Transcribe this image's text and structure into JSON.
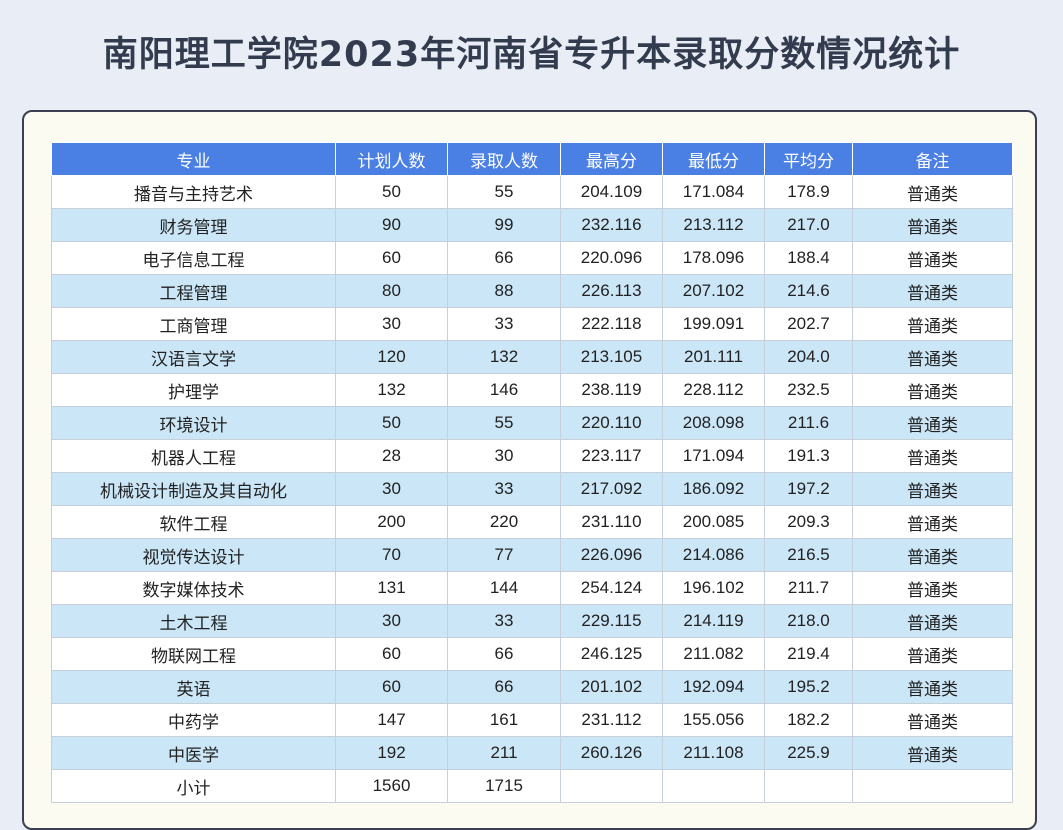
{
  "title": "南阳理工学院2023年河南省专升本录取分数情况统计",
  "table": {
    "headers": [
      "专业",
      "计划人数",
      "录取人数",
      "最高分",
      "最低分",
      "平均分",
      "备注"
    ],
    "rows": [
      [
        "播音与主持艺术",
        "50",
        "55",
        "204.109",
        "171.084",
        "178.9",
        "普通类"
      ],
      [
        "财务管理",
        "90",
        "99",
        "232.116",
        "213.112",
        "217.0",
        "普通类"
      ],
      [
        "电子信息工程",
        "60",
        "66",
        "220.096",
        "178.096",
        "188.4",
        "普通类"
      ],
      [
        "工程管理",
        "80",
        "88",
        "226.113",
        "207.102",
        "214.6",
        "普通类"
      ],
      [
        "工商管理",
        "30",
        "33",
        "222.118",
        "199.091",
        "202.7",
        "普通类"
      ],
      [
        "汉语言文学",
        "120",
        "132",
        "213.105",
        "201.111",
        "204.0",
        "普通类"
      ],
      [
        "护理学",
        "132",
        "146",
        "238.119",
        "228.112",
        "232.5",
        "普通类"
      ],
      [
        "环境设计",
        "50",
        "55",
        "220.110",
        "208.098",
        "211.6",
        "普通类"
      ],
      [
        "机器人工程",
        "28",
        "30",
        "223.117",
        "171.094",
        "191.3",
        "普通类"
      ],
      [
        "机械设计制造及其自动化",
        "30",
        "33",
        "217.092",
        "186.092",
        "197.2",
        "普通类"
      ],
      [
        "软件工程",
        "200",
        "220",
        "231.110",
        "200.085",
        "209.3",
        "普通类"
      ],
      [
        "视觉传达设计",
        "70",
        "77",
        "226.096",
        "214.086",
        "216.5",
        "普通类"
      ],
      [
        "数字媒体技术",
        "131",
        "144",
        "254.124",
        "196.102",
        "211.7",
        "普通类"
      ],
      [
        "土木工程",
        "30",
        "33",
        "229.115",
        "214.119",
        "218.0",
        "普通类"
      ],
      [
        "物联网工程",
        "60",
        "66",
        "246.125",
        "211.082",
        "219.4",
        "普通类"
      ],
      [
        "英语",
        "60",
        "66",
        "201.102",
        "192.094",
        "195.2",
        "普通类"
      ],
      [
        "中药学",
        "147",
        "161",
        "231.112",
        "155.056",
        "182.2",
        "普通类"
      ],
      [
        "中医学",
        "192",
        "211",
        "260.126",
        "211.108",
        "225.9",
        "普通类"
      ]
    ],
    "subtotal": [
      "小计",
      "1560",
      "1715",
      "",
      "",
      "",
      ""
    ]
  },
  "colors": {
    "header_bg": "#4a7fe4",
    "row_alt_bg": "#cbe6f7",
    "card_bg": "#fbfbf1",
    "page_bg": "#e9edf6"
  }
}
